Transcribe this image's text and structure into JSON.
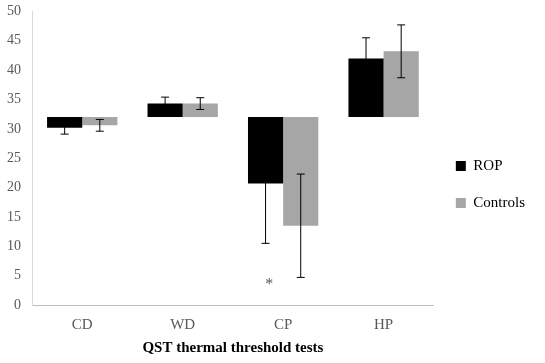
{
  "chart_data": {
    "type": "bar",
    "x_label": "QST thermal threshold tests",
    "categories": [
      "CD",
      "WD",
      "CP",
      "HP"
    ],
    "baseline": 32,
    "series": [
      {
        "name": "ROP",
        "color": "#000000",
        "values": [
          30.2,
          34.3,
          20.7,
          42.0
        ],
        "errors": [
          1.1,
          1.1,
          10.2,
          3.5
        ]
      },
      {
        "name": "Controls",
        "color": "#a6a6a6",
        "values": [
          30.6,
          34.3,
          13.5,
          43.2
        ],
        "errors": [
          1.0,
          1.0,
          8.8,
          4.5
        ]
      }
    ],
    "ylim": [
      0,
      50
    ],
    "yticks": [
      0,
      5,
      10,
      15,
      20,
      25,
      30,
      35,
      40,
      45,
      50
    ],
    "grid": false,
    "legend": "right",
    "annotations": [
      {
        "text": "*",
        "x": "CP",
        "y": 3.5
      }
    ]
  }
}
